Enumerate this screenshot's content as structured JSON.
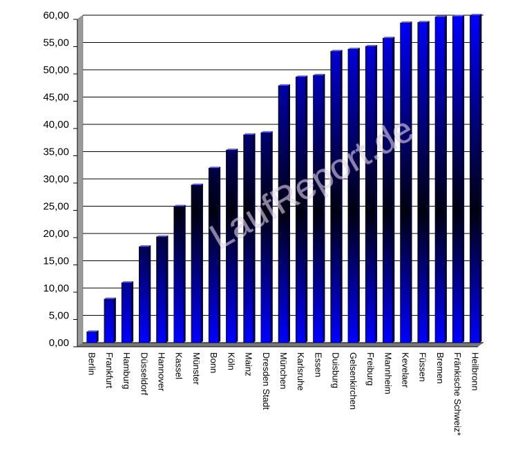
{
  "chart_data": {
    "type": "bar",
    "categories": [
      "Berlin",
      "Frankfurt",
      "Hamburg",
      "Düsseldorf",
      "Hannover",
      "Kassel",
      "Münster",
      "Bonn",
      "Köln",
      "Mainz",
      "Dresden Stadt",
      "München",
      "Karlsruhe",
      "Essen",
      "Duisburg",
      "Gelsenkirchen",
      "Freiburg",
      "Mannheim",
      "Kevelaer",
      "Füssen",
      "Bremen",
      "Fränkische Schweiz*",
      "Heilbronn"
    ],
    "values": [
      2.0,
      8.0,
      11.0,
      17.6,
      19.4,
      25.0,
      28.9,
      32.0,
      35.3,
      38.1,
      38.5,
      47.1,
      48.7,
      49.0,
      53.4,
      53.8,
      54.3,
      55.8,
      58.6,
      58.7,
      59.7,
      59.8,
      60.0
    ],
    "color": "#0000ff",
    "ylim": [
      0,
      60
    ],
    "yticks": [
      {
        "value": 0,
        "label": "0,00"
      },
      {
        "value": 5,
        "label": "5,00"
      },
      {
        "value": 10,
        "label": "10,00"
      },
      {
        "value": 15,
        "label": "15,00"
      },
      {
        "value": 20,
        "label": "20,00"
      },
      {
        "value": 25,
        "label": "25,00"
      },
      {
        "value": 30,
        "label": "30,00"
      },
      {
        "value": 35,
        "label": "35,00"
      },
      {
        "value": 40,
        "label": "40,00"
      },
      {
        "value": 45,
        "label": "45,00"
      },
      {
        "value": 50,
        "label": "50,00"
      },
      {
        "value": 55,
        "label": "55,00"
      },
      {
        "value": 60,
        "label": "60,00"
      }
    ],
    "grid": true,
    "watermark": "LaufReport.de"
  }
}
